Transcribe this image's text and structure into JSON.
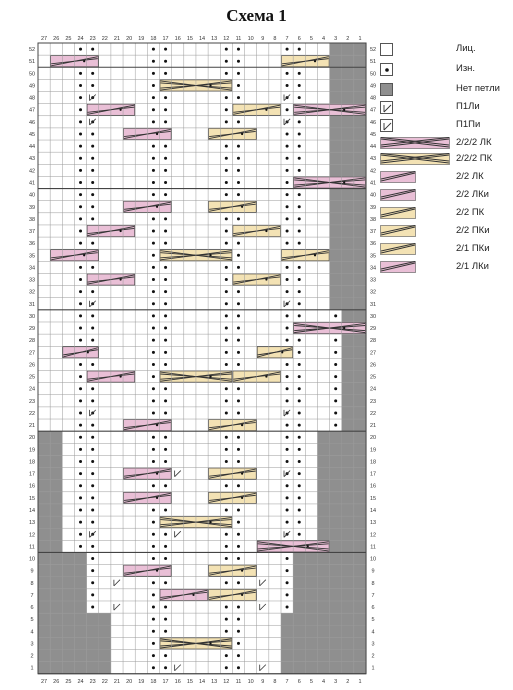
{
  "title": "Схема 1",
  "colors": {
    "grid": "#9a9a9a",
    "no_stitch": "#8f8f8f",
    "pink": "#e9bfd6",
    "yellow": "#f3e2b4",
    "dot": "#111111",
    "line": "#333333"
  },
  "chart": {
    "columns": 27,
    "rows": 52,
    "col_labels": [
      "27",
      "26",
      "25",
      "24",
      "23",
      "22",
      "21",
      "20",
      "19",
      "18",
      "17",
      "16",
      "15",
      "14",
      "13",
      "12",
      "11",
      "10",
      "9",
      "8",
      "7",
      "6",
      "5",
      "4",
      "3",
      "2",
      "1"
    ],
    "row_labels": [
      "52",
      "51",
      "50",
      "49",
      "48",
      "47",
      "46",
      "45",
      "44",
      "43",
      "42",
      "41",
      "40",
      "39",
      "38",
      "37",
      "36",
      "35",
      "34",
      "33",
      "32",
      "31",
      "30",
      "29",
      "28",
      "27",
      "26",
      "25",
      "24",
      "23",
      "22",
      "21",
      "20",
      "19",
      "18",
      "17",
      "16",
      "15",
      "14",
      "13",
      "12",
      "11",
      "10",
      "9",
      "8",
      "7",
      "6",
      "5",
      "4",
      "3",
      "2",
      "1"
    ],
    "no_stitch_edge_right": [
      3,
      3,
      3,
      3,
      3,
      3,
      3,
      3,
      3,
      3,
      3,
      3,
      3,
      3,
      3,
      3,
      3,
      3,
      3,
      3,
      3,
      3,
      2,
      2,
      2,
      2,
      2,
      2,
      2,
      2,
      2,
      2,
      4,
      4,
      4,
      4,
      4,
      4,
      4,
      4,
      4,
      4,
      6,
      6,
      6,
      6,
      6,
      7,
      7,
      7,
      7,
      7
    ],
    "no_stitch_edge_left": [
      0,
      0,
      0,
      0,
      0,
      0,
      0,
      0,
      0,
      0,
      0,
      0,
      0,
      0,
      0,
      0,
      0,
      0,
      0,
      0,
      0,
      0,
      0,
      0,
      0,
      0,
      0,
      0,
      0,
      0,
      0,
      0,
      2,
      2,
      2,
      2,
      2,
      2,
      2,
      2,
      2,
      2,
      4,
      4,
      4,
      4,
      4,
      6,
      6,
      6,
      6,
      6
    ],
    "purl_columns": [
      3,
      4,
      9,
      10,
      15,
      16,
      20,
      21,
      24,
      25
    ],
    "cables": [
      {
        "row": 51,
        "col": 1,
        "span": 4,
        "color": "pink"
      },
      {
        "row": 51,
        "col": 20,
        "span": 4,
        "color": "yellow"
      },
      {
        "row": 49,
        "col": 10,
        "span": 6,
        "color": "yellow"
      },
      {
        "row": 47,
        "col": 4,
        "span": 4,
        "color": "pink"
      },
      {
        "row": 47,
        "col": 16,
        "span": 4,
        "color": "yellow"
      },
      {
        "row": 47,
        "col": 21,
        "span": 6,
        "color": "pink"
      },
      {
        "row": 45,
        "col": 7,
        "span": 4,
        "color": "pink"
      },
      {
        "row": 45,
        "col": 14,
        "span": 4,
        "color": "yellow"
      },
      {
        "row": 41,
        "col": 21,
        "span": 6,
        "color": "pink"
      },
      {
        "row": 39,
        "col": 7,
        "span": 4,
        "color": "pink"
      },
      {
        "row": 39,
        "col": 14,
        "span": 4,
        "color": "yellow"
      },
      {
        "row": 37,
        "col": 4,
        "span": 4,
        "color": "pink"
      },
      {
        "row": 37,
        "col": 16,
        "span": 4,
        "color": "yellow"
      },
      {
        "row": 35,
        "col": 1,
        "span": 4,
        "color": "pink"
      },
      {
        "row": 35,
        "col": 10,
        "span": 6,
        "color": "yellow"
      },
      {
        "row": 35,
        "col": 20,
        "span": 4,
        "color": "yellow"
      },
      {
        "row": 33,
        "col": 4,
        "span": 4,
        "color": "pink"
      },
      {
        "row": 33,
        "col": 16,
        "span": 4,
        "color": "yellow"
      },
      {
        "row": 29,
        "col": 21,
        "span": 6,
        "color": "pink"
      },
      {
        "row": 27,
        "col": 2,
        "span": 3,
        "color": "pink"
      },
      {
        "row": 27,
        "col": 18,
        "span": 3,
        "color": "yellow"
      },
      {
        "row": 25,
        "col": 4,
        "span": 4,
        "color": "pink"
      },
      {
        "row": 25,
        "col": 10,
        "span": 6,
        "color": "yellow"
      },
      {
        "row": 25,
        "col": 16,
        "span": 4,
        "color": "yellow"
      },
      {
        "row": 21,
        "col": 7,
        "span": 4,
        "color": "pink"
      },
      {
        "row": 21,
        "col": 14,
        "span": 4,
        "color": "yellow"
      },
      {
        "row": 17,
        "col": 7,
        "span": 4,
        "color": "pink"
      },
      {
        "row": 17,
        "col": 14,
        "span": 4,
        "color": "yellow"
      },
      {
        "row": 15,
        "col": 7,
        "span": 4,
        "color": "pink"
      },
      {
        "row": 15,
        "col": 14,
        "span": 4,
        "color": "yellow"
      },
      {
        "row": 13,
        "col": 10,
        "span": 6,
        "color": "yellow"
      },
      {
        "row": 11,
        "col": 18,
        "span": 6,
        "color": "pink"
      },
      {
        "row": 9,
        "col": 7,
        "span": 4,
        "color": "pink"
      },
      {
        "row": 9,
        "col": 14,
        "span": 4,
        "color": "yellow"
      },
      {
        "row": 7,
        "col": 10,
        "span": 4,
        "color": "pink"
      },
      {
        "row": 7,
        "col": 14,
        "span": 4,
        "color": "yellow"
      },
      {
        "row": 3,
        "col": 10,
        "span": 6,
        "color": "yellow"
      }
    ],
    "twist_left": [
      [
        48,
        4
      ],
      [
        46,
        4
      ],
      [
        31,
        4
      ],
      [
        22,
        4
      ],
      [
        12,
        4
      ],
      [
        8,
        6
      ],
      [
        6,
        6
      ]
    ],
    "twist_right": [
      [
        48,
        20
      ],
      [
        46,
        20
      ],
      [
        31,
        20
      ],
      [
        22,
        20
      ],
      [
        17,
        20
      ],
      [
        12,
        20
      ],
      [
        8,
        18
      ],
      [
        6,
        18
      ],
      [
        1,
        18
      ]
    ],
    "twist_mid": [
      [
        17,
        11
      ],
      [
        12,
        11
      ],
      [
        1,
        11
      ]
    ]
  },
  "legend": [
    {
      "icon": "knit-symbol",
      "label": "Лиц."
    },
    {
      "icon": "purl-symbol",
      "label": "Изн."
    },
    {
      "icon": "no-stitch-symbol",
      "label": "Нет петли"
    },
    {
      "icon": "p1li-symbol",
      "label": "П1Ли"
    },
    {
      "icon": "p1pi-symbol",
      "label": "П1Пи"
    },
    {
      "icon": "cable-222-lk-symbol",
      "label": "2/2/2 ЛК"
    },
    {
      "icon": "cable-222-pk-symbol",
      "label": "2/2/2 ПК"
    },
    {
      "icon": "cable-22-lk-symbol",
      "label": "2/2 ЛК"
    },
    {
      "icon": "cable-22-lki-symbol",
      "label": "2/2 ЛКи"
    },
    {
      "icon": "cable-22-pk-symbol",
      "label": "2/2 ПК"
    },
    {
      "icon": "cable-22-pki-symbol",
      "label": "2/2 ПКи"
    },
    {
      "icon": "cable-21-pki-symbol",
      "label": "2/1 ПКи"
    },
    {
      "icon": "cable-21-lki-symbol",
      "label": "2/1 ЛКи"
    }
  ]
}
